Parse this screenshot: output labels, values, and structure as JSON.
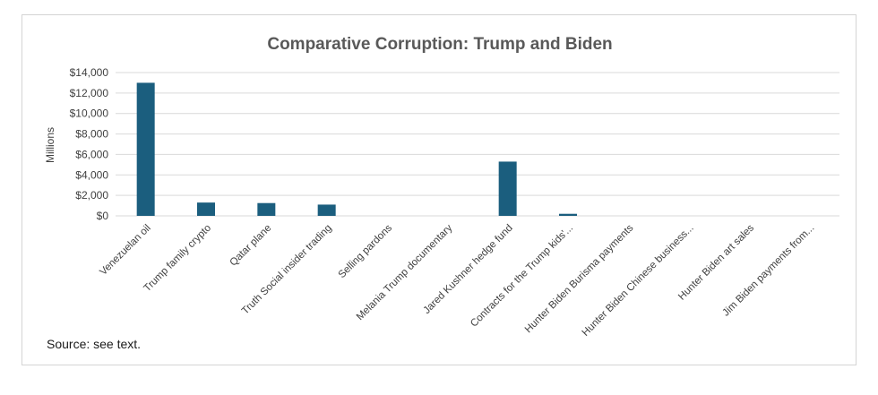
{
  "chart_data": {
    "type": "bar",
    "title": "Comparative Corruption: Trump and Biden",
    "ylabel": "Millions",
    "xlabel": "",
    "ylim": [
      0,
      14000
    ],
    "yticks": [
      "$0",
      "$2,000",
      "$4,000",
      "$6,000",
      "$8,000",
      "$10,000",
      "$12,000",
      "$14,000"
    ],
    "grid": true,
    "categories": [
      "Venezuelan oil",
      "Trump family crypto",
      "Qatar plane",
      "Truth Social insider trading",
      "Selling pardons",
      "Melania Trump documentary",
      "Jared Kushner hedge fund",
      "Contracts for the Trump kids'...",
      "Hunter Biden Burisma payments",
      "Hunter Biden Chinese business...",
      "Hunter Biden art sales",
      "Jim Biden payments from..."
    ],
    "values": [
      13000,
      1300,
      1250,
      1100,
      0,
      0,
      5300,
      200,
      0,
      0,
      0,
      0
    ],
    "bar_color": "#1b5e7e"
  },
  "footer": {
    "source": "Source: see text."
  }
}
